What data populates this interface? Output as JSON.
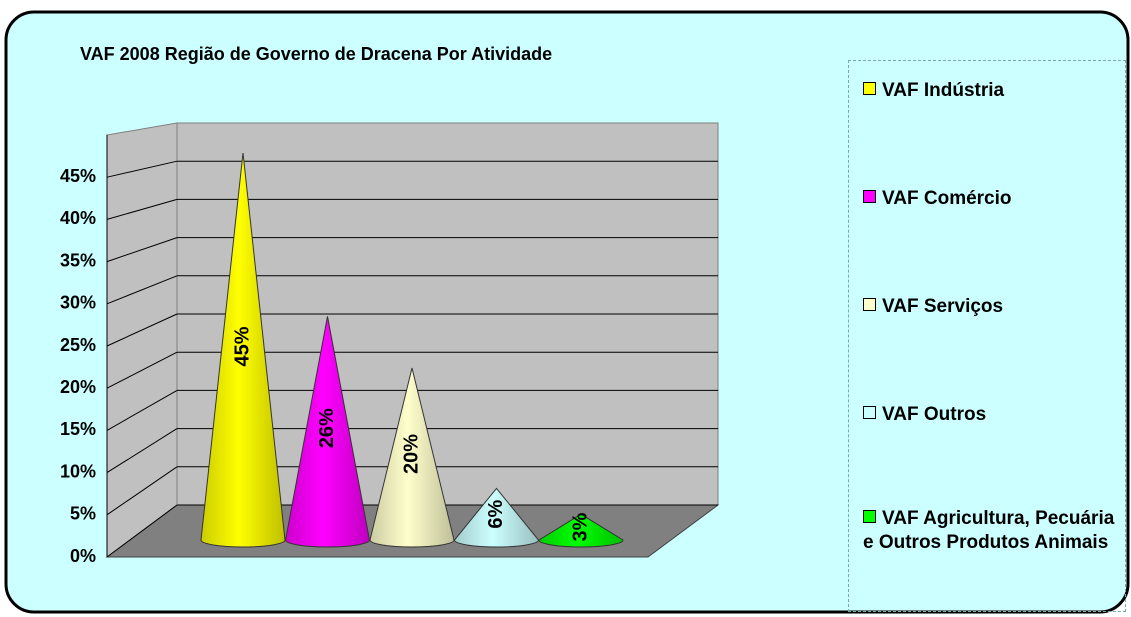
{
  "chart_data": {
    "type": "cone",
    "title": "VAF 2008 Região de Governo de Dracena Por Atividade",
    "ylim": [
      0,
      50
    ],
    "yticks": [
      {
        "value": 0,
        "label": "0%"
      },
      {
        "value": 5,
        "label": "5%"
      },
      {
        "value": 10,
        "label": "10%"
      },
      {
        "value": 15,
        "label": "15%"
      },
      {
        "value": 20,
        "label": "20%"
      },
      {
        "value": 25,
        "label": "25%"
      },
      {
        "value": 30,
        "label": "30%"
      },
      {
        "value": 35,
        "label": "35%"
      },
      {
        "value": 40,
        "label": "40%"
      },
      {
        "value": 45,
        "label": "45%"
      }
    ],
    "grid": true,
    "legend": "right",
    "series": [
      {
        "name": "VAF Indústria",
        "color": "#ffff00",
        "values": [
          45
        ],
        "value_labels": [
          "45%"
        ]
      },
      {
        "name": "VAF Comércio",
        "color": "#ff00ff",
        "values": [
          26
        ],
        "value_labels": [
          "26%"
        ]
      },
      {
        "name": "VAF Serviços",
        "color": "#ffffcc",
        "values": [
          20
        ],
        "value_labels": [
          "20%"
        ]
      },
      {
        "name": "VAF Outros",
        "color": "#ccffff",
        "values": [
          6
        ],
        "value_labels": [
          "6%"
        ]
      },
      {
        "name": "VAF Agricultura, Pecuária e Outros Produtos Animais",
        "color": "#00ff00",
        "values": [
          3
        ],
        "value_labels": [
          "3%"
        ]
      }
    ]
  }
}
